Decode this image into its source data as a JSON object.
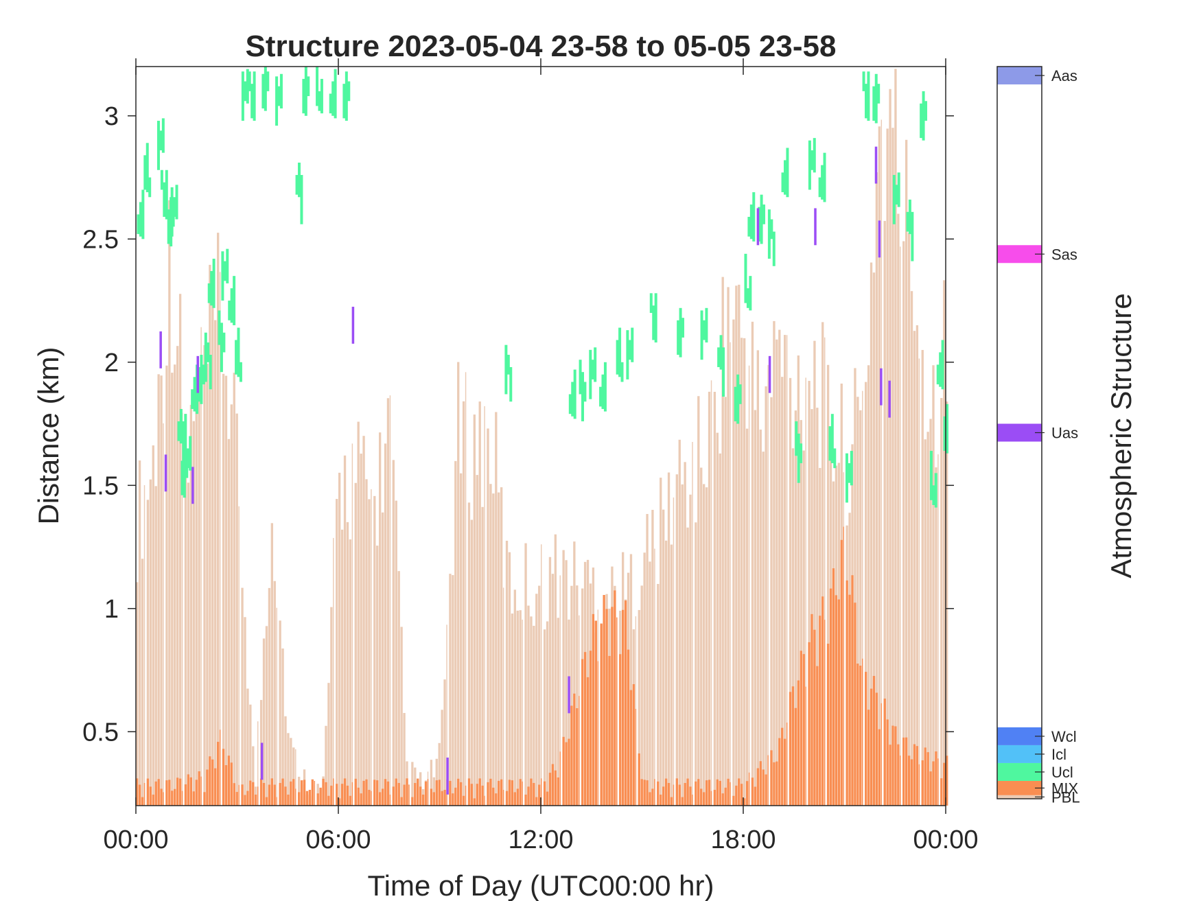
{
  "chart_data": {
    "type": "heatmap",
    "title": "Structure 2023-05-04 23-58 to 05-05 23-58",
    "xlabel": "Time of Day (UTC00:00 hr)",
    "ylabel": "Distance (km)",
    "xlim": [
      0,
      24
    ],
    "ylim": [
      0.2,
      3.2
    ],
    "xticks": [
      0,
      6,
      12,
      18,
      24
    ],
    "xtick_labels": [
      "00:00",
      "06:00",
      "12:00",
      "18:00",
      "00:00"
    ],
    "yticks": [
      0.5,
      1,
      1.5,
      2,
      2.5,
      3
    ],
    "ytick_labels": [
      "0.5",
      "1",
      "1.5",
      "2",
      "2.5",
      "3"
    ],
    "grid": false,
    "colorbar": {
      "label": "Atmospheric Structure",
      "categories": [
        {
          "name": "PBL",
          "color": "#EBCBB5",
          "range": [
            0.0,
            0.2
          ]
        },
        {
          "name": "MIX",
          "color": "#F98E52",
          "range": [
            0.2,
            1.0
          ]
        },
        {
          "name": "Ucl",
          "color": "#4FF79F",
          "range": [
            1.0,
            2.0
          ]
        },
        {
          "name": "Icl",
          "color": "#52C1F8",
          "range": [
            2.0,
            3.0
          ]
        },
        {
          "name": "Wcl",
          "color": "#5081F4",
          "range": [
            3.0,
            4.0
          ]
        },
        {
          "name": "Uas",
          "color": "#9B4DF5",
          "range": [
            20.0,
            21.0
          ]
        },
        {
          "name": "Sas",
          "color": "#F74DEB",
          "range": [
            30.0,
            31.0
          ]
        },
        {
          "name": "Aas",
          "color": "#8D9AE8",
          "range": [
            40.0,
            41.0
          ]
        }
      ],
      "cmin": 0,
      "cmax": 41
    },
    "pbl_profile": {
      "x": [
        0.0,
        0.5,
        1.0,
        1.5,
        2.0,
        2.5,
        3.0,
        3.5,
        4.0,
        4.5,
        5.0,
        5.5,
        6.0,
        6.5,
        7.0,
        7.5,
        8.0,
        8.5,
        9.0,
        9.5,
        10.0,
        10.5,
        11.0,
        11.5,
        12.0,
        12.5,
        13.0,
        13.5,
        14.0,
        14.5,
        15.0,
        15.5,
        16.0,
        16.5,
        17.0,
        17.5,
        18.0,
        18.5,
        19.0,
        19.5,
        20.0,
        20.5,
        21.0,
        21.5,
        22.0,
        22.5,
        23.0,
        23.5,
        24.0
      ],
      "top_km": [
        1.35,
        1.6,
        2.45,
        1.6,
        1.95,
        2.2,
        1.5,
        0.25,
        1.45,
        0.45,
        0.3,
        0.25,
        1.5,
        1.55,
        1.4,
        1.75,
        0.35,
        0.28,
        0.4,
        1.7,
        1.65,
        1.7,
        1.1,
        1.1,
        1.1,
        1.15,
        1.1,
        1.1,
        1.05,
        1.05,
        1.2,
        1.3,
        1.5,
        1.55,
        1.7,
        2.2,
        2.1,
        1.75,
        2.05,
        1.9,
        2.0,
        1.75,
        1.6,
        1.75,
        2.95,
        2.8,
        2.4,
        1.8,
        2.1
      ]
    },
    "mix_profile": {
      "x": [
        0.0,
        1.0,
        2.0,
        2.5,
        3.0,
        3.5,
        4.0,
        6.0,
        7.0,
        10.0,
        12.0,
        12.5,
        13.0,
        13.5,
        14.0,
        14.5,
        15.0,
        18.0,
        19.0,
        19.5,
        20.0,
        20.5,
        21.0,
        21.5,
        22.0,
        22.5,
        23.0,
        24.0
      ],
      "top_km": [
        0.27,
        0.27,
        0.3,
        0.45,
        0.25,
        0.27,
        0.27,
        0.27,
        0.27,
        0.27,
        0.27,
        0.35,
        0.6,
        0.85,
        0.95,
        0.9,
        0.27,
        0.27,
        0.4,
        0.65,
        0.85,
        0.95,
        1.2,
        0.7,
        0.6,
        0.45,
        0.4,
        0.35
      ]
    },
    "cloud_ucl_points": [
      [
        0.1,
        2.6
      ],
      [
        0.3,
        2.75
      ],
      [
        0.7,
        2.9
      ],
      [
        0.8,
        2.7
      ],
      [
        1.0,
        2.55
      ],
      [
        1.1,
        2.65
      ],
      [
        1.3,
        1.7
      ],
      [
        1.4,
        1.55
      ],
      [
        1.5,
        1.65
      ],
      [
        1.7,
        1.85
      ],
      [
        1.9,
        1.95
      ],
      [
        2.1,
        2.0
      ],
      [
        2.2,
        2.3
      ],
      [
        2.5,
        2.1
      ],
      [
        2.6,
        2.35
      ],
      [
        2.8,
        2.25
      ],
      [
        3.0,
        2.0
      ],
      [
        3.2,
        3.1
      ],
      [
        3.4,
        3.1
      ],
      [
        3.8,
        3.1
      ],
      [
        4.2,
        3.1
      ],
      [
        4.8,
        2.7
      ],
      [
        5.0,
        3.1
      ],
      [
        5.4,
        3.1
      ],
      [
        5.8,
        3.05
      ],
      [
        6.2,
        3.1
      ],
      [
        11.0,
        1.95
      ],
      [
        12.9,
        1.85
      ],
      [
        13.2,
        1.9
      ],
      [
        13.5,
        1.95
      ],
      [
        13.8,
        1.9
      ],
      [
        14.3,
        2.0
      ],
      [
        14.6,
        2.05
      ],
      [
        15.3,
        2.2
      ],
      [
        16.1,
        2.1
      ],
      [
        16.8,
        2.15
      ],
      [
        17.3,
        2.0
      ],
      [
        17.8,
        1.85
      ],
      [
        18.1,
        2.3
      ],
      [
        18.2,
        2.55
      ],
      [
        18.5,
        2.6
      ],
      [
        18.8,
        2.5
      ],
      [
        19.2,
        2.75
      ],
      [
        19.6,
        1.65
      ],
      [
        20.0,
        2.8
      ],
      [
        20.3,
        2.75
      ],
      [
        20.6,
        1.65
      ],
      [
        21.1,
        1.55
      ],
      [
        21.6,
        3.1
      ],
      [
        21.9,
        3.05
      ],
      [
        22.5,
        2.7
      ],
      [
        22.9,
        2.55
      ],
      [
        23.3,
        3.0
      ],
      [
        23.6,
        1.5
      ],
      [
        23.8,
        1.95
      ],
      [
        24.0,
        1.75
      ]
    ],
    "cloud_uas_points": [
      [
        0.7,
        2.05
      ],
      [
        0.85,
        1.55
      ],
      [
        1.65,
        1.5
      ],
      [
        1.8,
        1.95
      ],
      [
        3.7,
        0.38
      ],
      [
        6.4,
        2.15
      ],
      [
        9.2,
        0.32
      ],
      [
        12.8,
        0.65
      ],
      [
        18.4,
        2.55
      ],
      [
        18.75,
        1.95
      ],
      [
        20.1,
        2.55
      ],
      [
        21.9,
        2.8
      ],
      [
        22.0,
        2.5
      ],
      [
        22.05,
        1.9
      ],
      [
        22.3,
        1.85
      ]
    ]
  }
}
